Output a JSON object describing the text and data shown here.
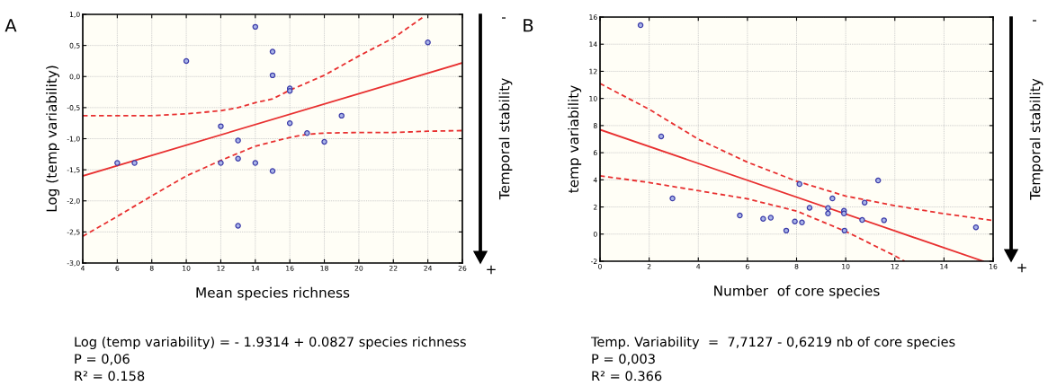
{
  "chart_data": [
    {
      "type": "scatter",
      "xlabel": "Mean species richness",
      "ylabel": "Log (temp variability)",
      "xlim": [
        4,
        26
      ],
      "xticks": [
        4,
        6,
        8,
        10,
        12,
        14,
        16,
        18,
        20,
        22,
        24,
        26
      ],
      "ylim": [
        -3,
        1
      ],
      "yticks": [
        {
          "value": -3,
          "label": "-3,0"
        },
        {
          "value": -2.5,
          "label": "-2,5"
        },
        {
          "value": -2,
          "label": "-2,0"
        },
        {
          "value": -1.5,
          "label": "-1,5"
        },
        {
          "value": -1,
          "label": "-1,0"
        },
        {
          "value": -0.5,
          "label": "-0,5"
        },
        {
          "value": 0,
          "label": "0,0"
        },
        {
          "value": 0.5,
          "label": "0,5"
        },
        {
          "value": 1,
          "label": "1,0"
        }
      ],
      "grid": true,
      "legend": false,
      "series": [
        {
          "type": "scatter",
          "color": "#3b3ba8",
          "marker": "circle",
          "x": [
            6,
            7,
            10,
            12,
            12,
            13,
            13,
            13,
            14,
            14,
            15,
            15,
            15,
            16,
            16,
            16,
            17,
            18,
            19,
            24
          ],
          "values": [
            -1.39,
            -1.39,
            0.25,
            -0.8,
            -1.39,
            -1.03,
            -1.32,
            -2.4,
            0.8,
            -1.39,
            0.4,
            0.02,
            -1.52,
            -0.19,
            -0.23,
            -0.75,
            -0.91,
            -1.05,
            -0.63,
            0.55
          ]
        },
        {
          "type": "line",
          "color": "#e83030",
          "line_style": "solid",
          "x": [
            4,
            26
          ],
          "values": [
            -1.6,
            0.22
          ]
        },
        {
          "type": "line",
          "color": "#e83030",
          "line_style": "dashed",
          "x": [
            4,
            6,
            8,
            10,
            12,
            13,
            14,
            15,
            16,
            18,
            20,
            22,
            23.8
          ],
          "values": [
            -0.63,
            -0.63,
            -0.63,
            -0.6,
            -0.55,
            -0.5,
            -0.42,
            -0.36,
            -0.22,
            0.02,
            0.33,
            0.62,
            0.97
          ]
        },
        {
          "type": "line",
          "color": "#e83030",
          "line_style": "dashed",
          "x": [
            4,
            6,
            8,
            10,
            12,
            14,
            16,
            17,
            18,
            20,
            22,
            24,
            26
          ],
          "values": [
            -2.57,
            -2.25,
            -1.92,
            -1.6,
            -1.35,
            -1.12,
            -0.98,
            -0.93,
            -0.91,
            -0.9,
            -0.9,
            -0.88,
            -0.87
          ]
        }
      ],
      "annotations": [
        "A",
        "Temporal stability",
        "-",
        "+",
        "Log (temp variability) = - 1.9314 + 0.0827 species richness",
        "P = 0,06",
        "R² = 0.158"
      ]
    },
    {
      "type": "scatter",
      "xlabel": "Number  of core species",
      "ylabel": "temp variability",
      "xlim": [
        0,
        16
      ],
      "xticks": [
        0,
        2,
        4,
        6,
        8,
        10,
        12,
        14,
        16
      ],
      "ylim": [
        -2,
        16
      ],
      "yticks": [
        -2,
        0,
        2,
        4,
        6,
        8,
        10,
        12,
        14,
        16
      ],
      "grid": true,
      "legend": false,
      "series": [
        {
          "type": "scatter",
          "color": "#3b3ba8",
          "marker": "circle",
          "x": [
            1.65,
            2.49,
            2.95,
            5.69,
            6.64,
            6.95,
            7.58,
            7.93,
            8.12,
            8.22,
            8.53,
            9.28,
            9.28,
            9.46,
            9.93,
            9.93,
            9.95,
            10.67,
            10.77,
            11.32,
            11.56,
            15.3
          ],
          "values": [
            15.4,
            7.2,
            2.63,
            1.37,
            1.13,
            1.21,
            0.26,
            0.93,
            3.69,
            0.86,
            1.94,
            1.92,
            1.52,
            2.63,
            1.72,
            1.52,
            0.26,
            1.04,
            2.32,
            3.95,
            1.02,
            0.5
          ]
        },
        {
          "type": "line",
          "color": "#e83030",
          "line_style": "solid",
          "x": [
            0,
            15.6
          ],
          "values": [
            7.7,
            -2
          ]
        },
        {
          "type": "line",
          "color": "#e83030",
          "line_style": "dashed",
          "x": [
            0,
            2,
            4,
            6,
            8,
            10,
            12,
            14,
            16
          ],
          "values": [
            11.1,
            9.2,
            7.0,
            5.3,
            3.9,
            2.8,
            2.1,
            1.5,
            1.0
          ]
        },
        {
          "type": "line",
          "color": "#e83030",
          "line_style": "dashed",
          "x": [
            0,
            2,
            4,
            6,
            8,
            10,
            12,
            12.4
          ],
          "values": [
            4.3,
            3.8,
            3.2,
            2.6,
            1.7,
            0.2,
            -1.6,
            -2
          ]
        }
      ],
      "annotations": [
        "B",
        "Temporal stability",
        "-",
        "+",
        "Temp. Variability  =  7,7127 - 0,6219 nb of core species",
        "P = 0,003",
        "R² = 0.366"
      ]
    }
  ]
}
